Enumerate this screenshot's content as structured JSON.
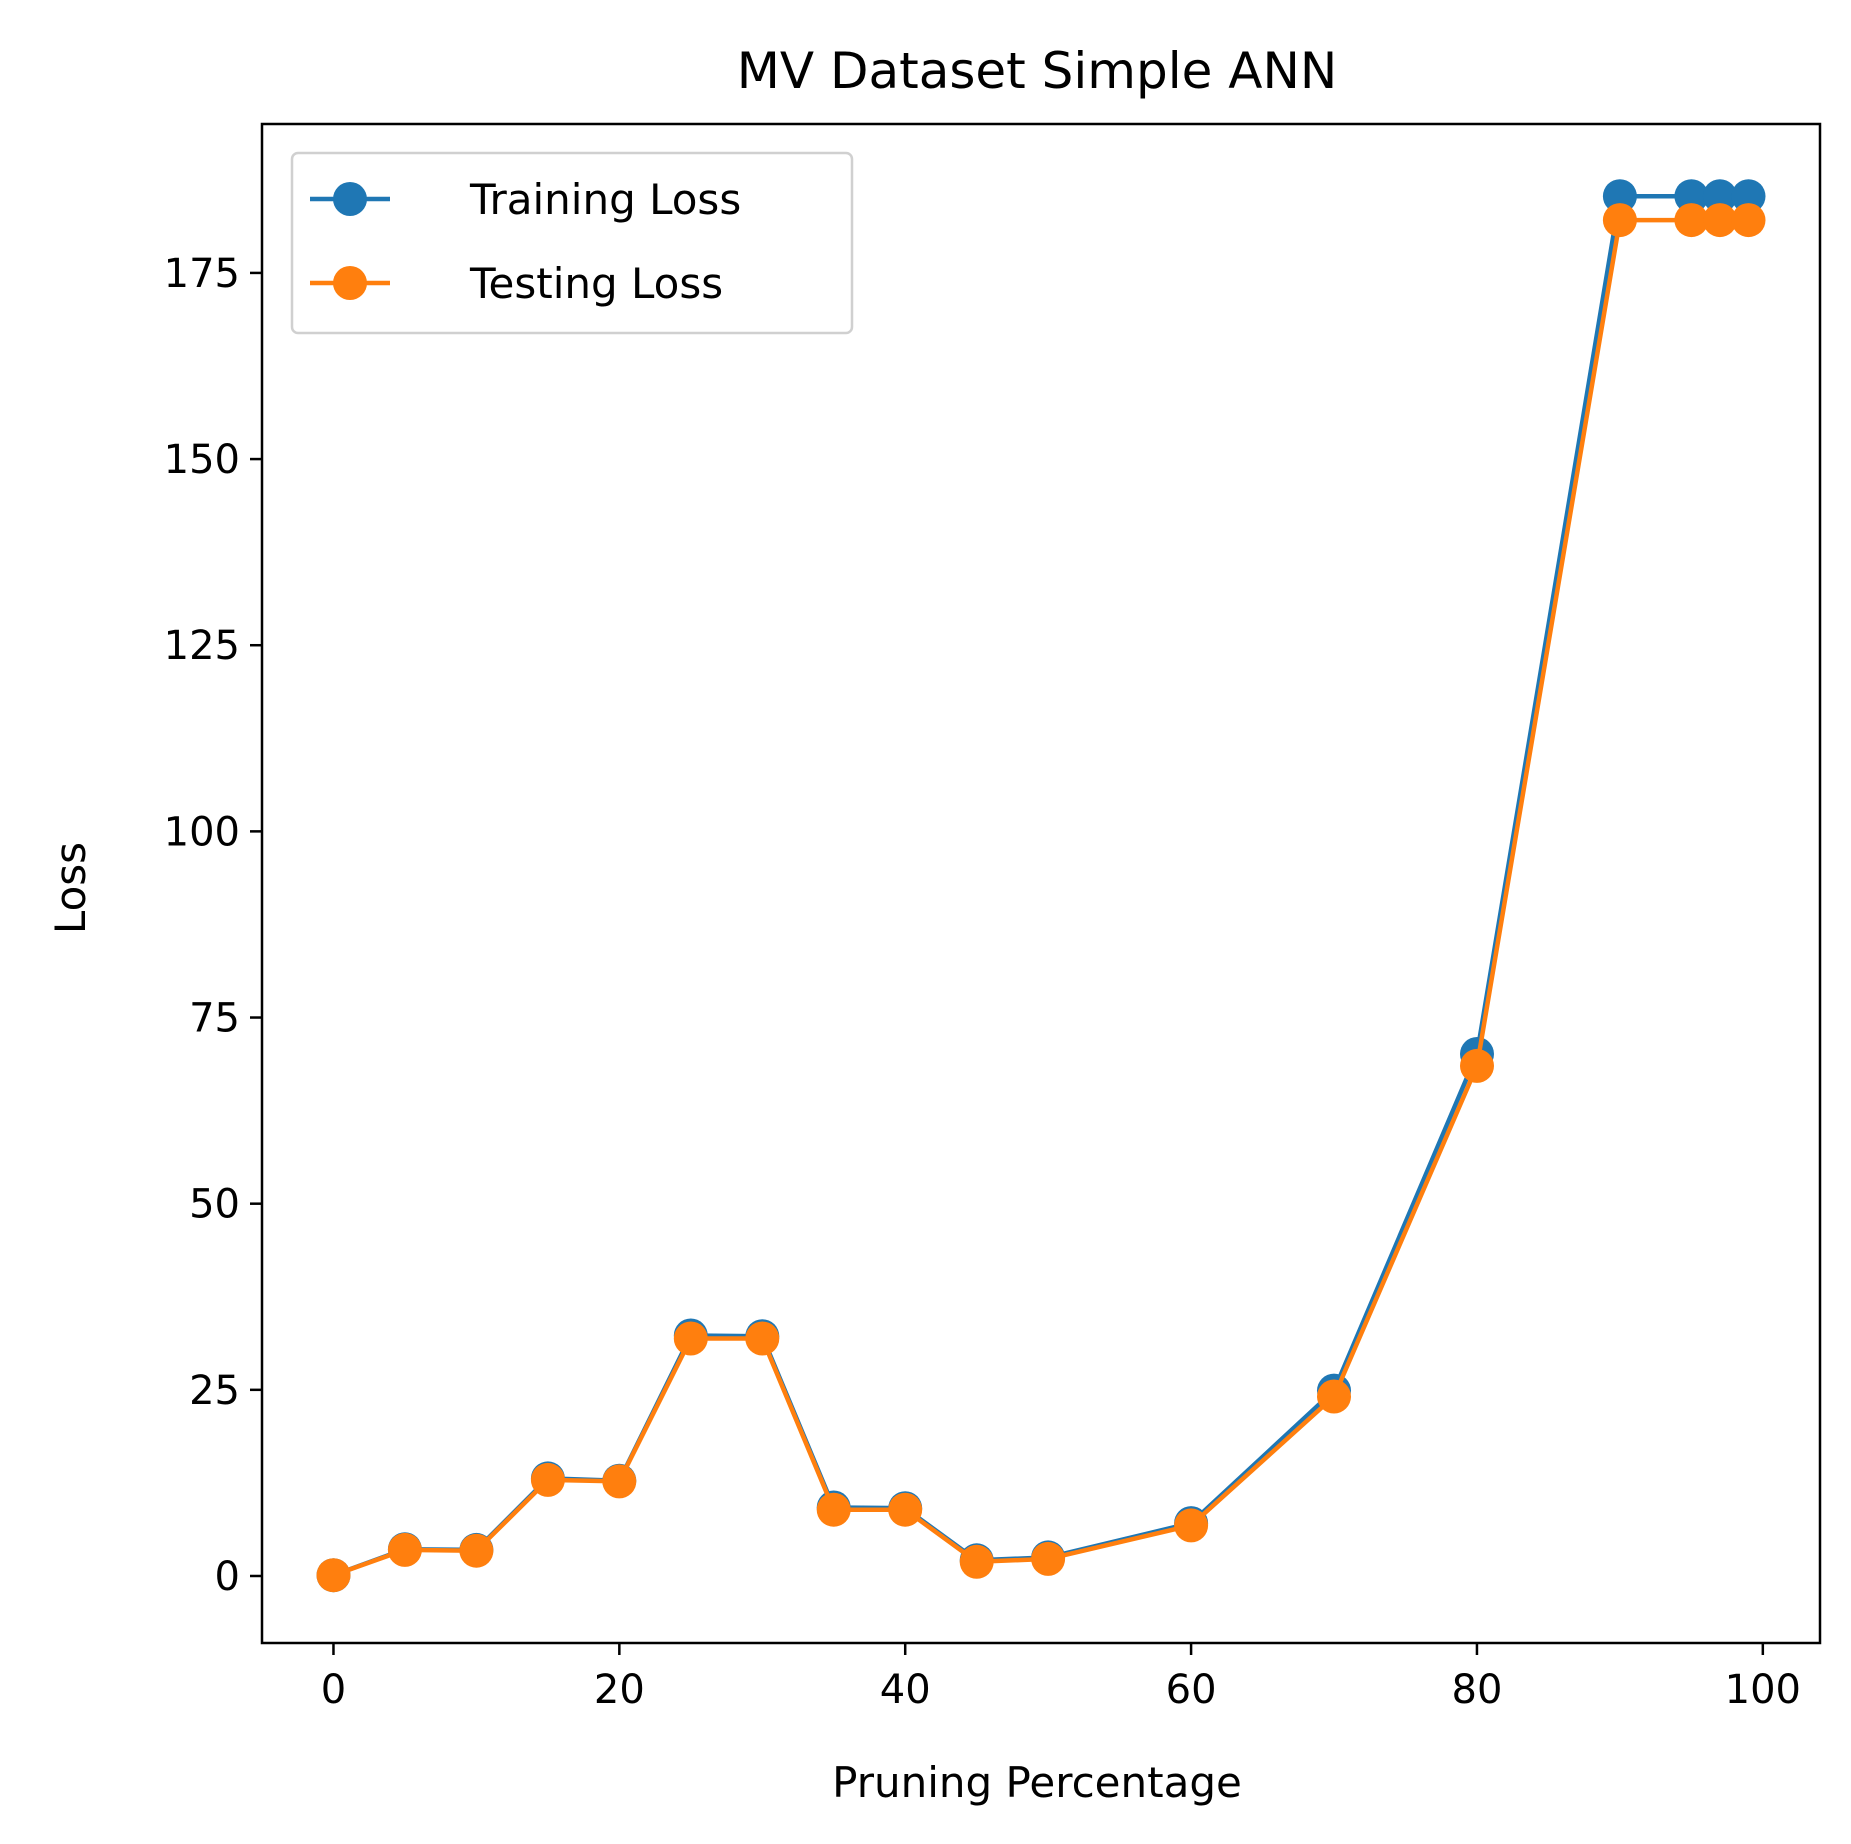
{
  "chart_data": {
    "type": "line",
    "title": "MV Dataset Simple ANN",
    "xlabel": "Pruning Percentage",
    "ylabel": "Loss",
    "xlim": [
      -5,
      104
    ],
    "ylim": [
      -9,
      195
    ],
    "x_ticks": [
      0,
      20,
      40,
      60,
      80,
      100
    ],
    "y_ticks": [
      0,
      25,
      50,
      75,
      100,
      125,
      150,
      175
    ],
    "grid": false,
    "legend_position": "top-left",
    "x": [
      0,
      5,
      10,
      15,
      20,
      25,
      30,
      35,
      40,
      45,
      50,
      60,
      70,
      80,
      90,
      95,
      97,
      99
    ],
    "series": [
      {
        "name": "Training Loss",
        "color": "#1f77b4",
        "values": [
          0.1,
          3.6,
          3.5,
          13.1,
          12.8,
          32.3,
          32.2,
          9.2,
          9.1,
          2.1,
          2.5,
          7.1,
          24.9,
          70.1,
          185.3,
          185.3,
          185.3,
          185.3
        ]
      },
      {
        "name": "Testing Loss",
        "color": "#ff7f0e",
        "values": [
          0.1,
          3.5,
          3.4,
          12.9,
          12.7,
          31.9,
          31.9,
          8.9,
          8.9,
          1.9,
          2.3,
          6.8,
          24.1,
          68.5,
          182.1,
          182.1,
          182.1,
          182.1
        ]
      }
    ]
  }
}
